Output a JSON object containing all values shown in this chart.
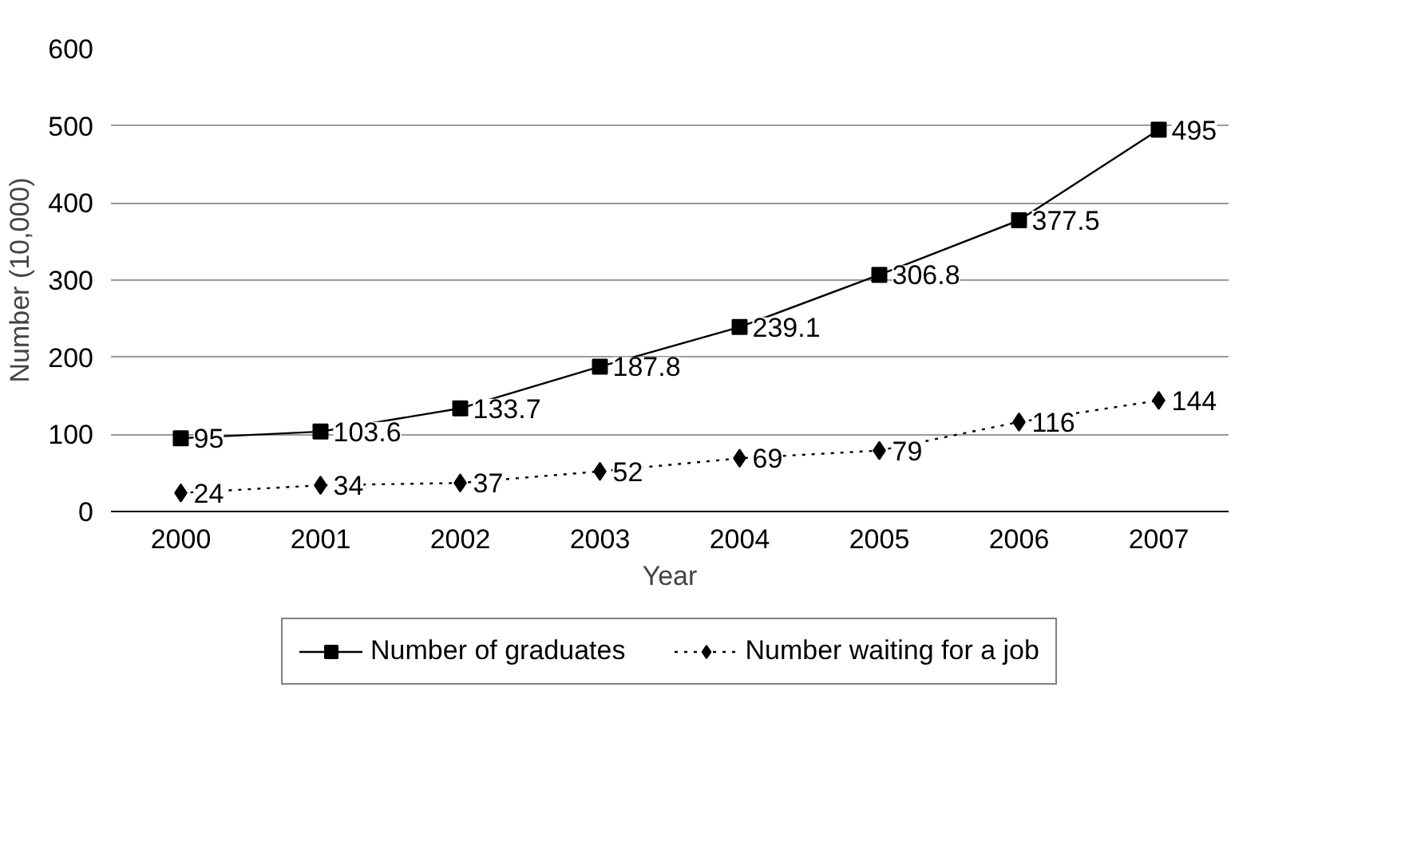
{
  "chart_data": {
    "type": "line",
    "xlabel": "Year",
    "ylabel": "Number (10,000)",
    "categories": [
      "2000",
      "2001",
      "2002",
      "2003",
      "2004",
      "2005",
      "2006",
      "2007"
    ],
    "series": [
      {
        "name": "Number of graduates",
        "color": "#000000",
        "marker": "square",
        "line_style": "solid",
        "values": [
          95,
          103.6,
          133.7,
          187.8,
          239.1,
          306.8,
          377.5,
          495
        ]
      },
      {
        "name": "Number waiting for a job",
        "color": "#000000",
        "marker": "diamond",
        "line_style": "dotted",
        "values": [
          24,
          34,
          37,
          52,
          69,
          79,
          116,
          144
        ]
      }
    ],
    "ylim": [
      0,
      600
    ],
    "yticks": [
      0,
      100,
      200,
      300,
      400,
      500,
      600
    ],
    "grid": "y",
    "legend": "bottom",
    "data_labels": true
  }
}
